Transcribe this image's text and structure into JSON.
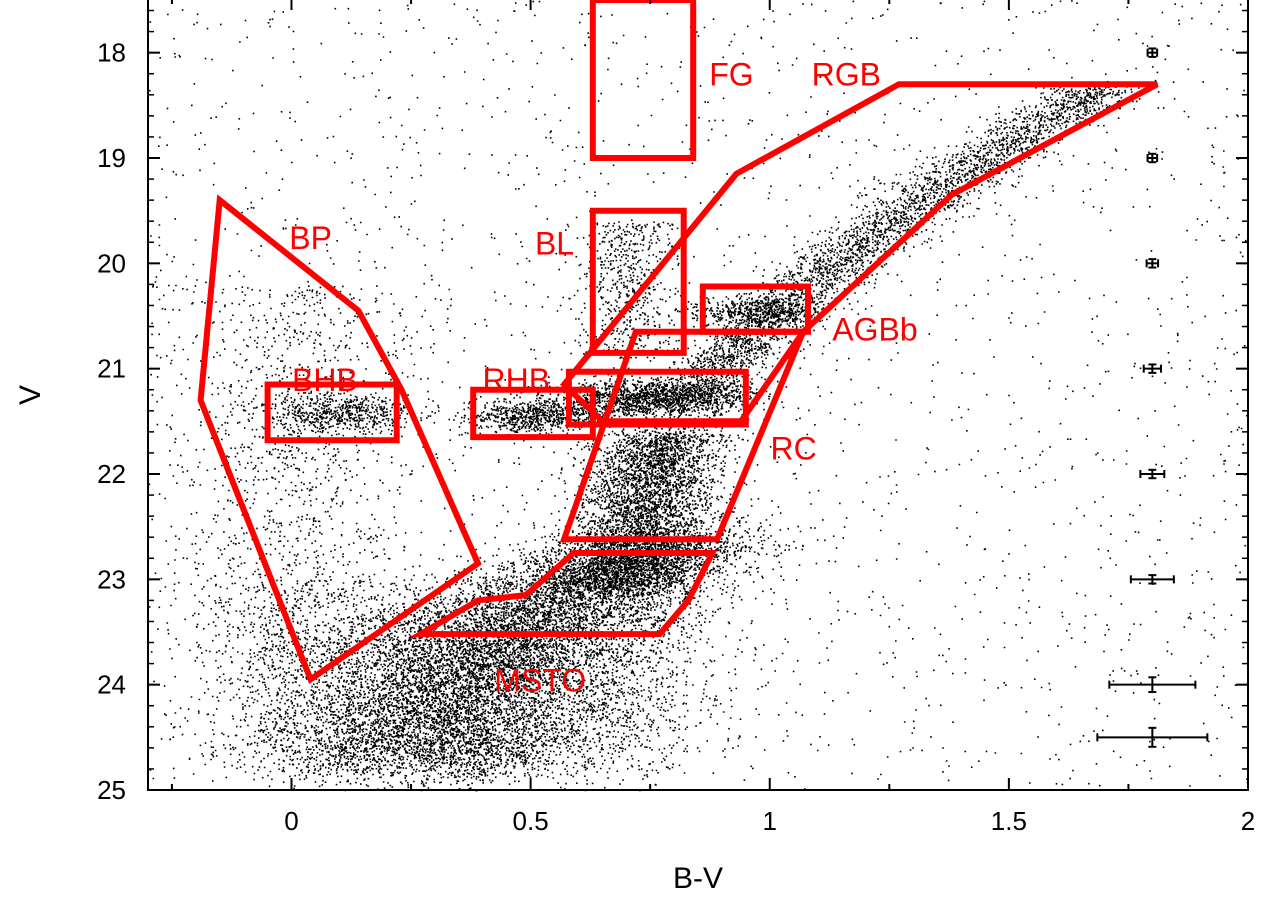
{
  "chart_data": {
    "type": "scatter",
    "title": "",
    "xlabel": "B-V",
    "ylabel": "V",
    "xlim": [
      -0.3,
      2.0
    ],
    "ylim": [
      25,
      17.5
    ],
    "y_inverted": true,
    "grid": false,
    "x_ticks": [
      "0",
      "0.5",
      "1",
      "1.5",
      "2"
    ],
    "x_tick_values": [
      0,
      0.5,
      1,
      1.5,
      2
    ],
    "y_ticks": [
      "18",
      "19",
      "20",
      "21",
      "22",
      "23",
      "24",
      "25"
    ],
    "y_tick_values": [
      18,
      19,
      20,
      21,
      22,
      23,
      24,
      25
    ],
    "colors": {
      "points": "#000000",
      "regions": "#ff0000",
      "errorbars": "#000000"
    },
    "point_density": [
      {
        "component": "main-sequence",
        "description_color": "#000000",
        "density": "very-high"
      },
      {
        "component": "red-giant-branch",
        "description_color": "#000000",
        "density": "high"
      },
      {
        "component": "horizontal-branch",
        "description_color": "#000000",
        "density": "high"
      },
      {
        "component": "field",
        "description_color": "#000000",
        "density": "low"
      }
    ],
    "regions": [
      {
        "name": "FG",
        "polygon": [
          [
            0.63,
            17.5
          ],
          [
            0.84,
            17.5
          ],
          [
            0.84,
            19.0
          ],
          [
            0.63,
            19.0
          ]
        ]
      },
      {
        "name": "RGB",
        "polygon": [
          [
            0.57,
            21.15
          ],
          [
            0.93,
            19.15
          ],
          [
            1.27,
            18.3
          ],
          [
            1.81,
            18.3
          ],
          [
            1.38,
            19.35
          ],
          [
            1.07,
            20.65
          ],
          [
            0.94,
            21.5
          ],
          [
            0.65,
            21.5
          ]
        ]
      },
      {
        "name": "BL",
        "polygon": [
          [
            0.63,
            19.5
          ],
          [
            0.82,
            19.5
          ],
          [
            0.82,
            20.85
          ],
          [
            0.63,
            20.85
          ]
        ]
      },
      {
        "name": "BP",
        "polygon": [
          [
            -0.15,
            19.4
          ],
          [
            0.14,
            20.45
          ],
          [
            0.23,
            21.2
          ],
          [
            0.39,
            22.85
          ],
          [
            0.04,
            23.95
          ],
          [
            -0.19,
            21.3
          ]
        ]
      },
      {
        "name": "AGBb",
        "polygon": [
          [
            0.86,
            20.22
          ],
          [
            1.08,
            20.22
          ],
          [
            1.08,
            20.65
          ],
          [
            0.86,
            20.65
          ]
        ]
      },
      {
        "name": "BHB",
        "polygon": [
          [
            -0.05,
            21.15
          ],
          [
            0.22,
            21.15
          ],
          [
            0.22,
            21.68
          ],
          [
            -0.05,
            21.68
          ]
        ]
      },
      {
        "name": "RHB",
        "polygon": [
          [
            0.38,
            21.2
          ],
          [
            0.63,
            21.2
          ],
          [
            0.63,
            21.65
          ],
          [
            0.38,
            21.65
          ]
        ]
      },
      {
        "name": "RC",
        "polygon": [
          [
            0.58,
            21.03
          ],
          [
            0.95,
            21.03
          ],
          [
            0.95,
            21.53
          ],
          [
            0.58,
            21.53
          ]
        ]
      },
      {
        "name": "RC-lower",
        "polygon": [
          [
            0.57,
            22.62
          ],
          [
            0.89,
            22.62
          ],
          [
            1.07,
            20.65
          ],
          [
            0.72,
            20.65
          ]
        ]
      },
      {
        "name": "MSTO",
        "polygon": [
          [
            0.27,
            23.52
          ],
          [
            0.39,
            23.2
          ],
          [
            0.49,
            23.15
          ],
          [
            0.59,
            22.75
          ],
          [
            0.88,
            22.75
          ],
          [
            0.83,
            23.2
          ],
          [
            0.77,
            23.52
          ]
        ]
      }
    ],
    "region_labels": [
      {
        "text": "FG",
        "x": 0.92,
        "y": 18.2
      },
      {
        "text": "RGB",
        "x": 1.16,
        "y": 18.2
      },
      {
        "text": "BP",
        "x": 0.04,
        "y": 19.75
      },
      {
        "text": "BL",
        "x": 0.55,
        "y": 19.8
      },
      {
        "text": "AGBb",
        "x": 1.22,
        "y": 20.62
      },
      {
        "text": "BHB",
        "x": 0.07,
        "y": 21.1
      },
      {
        "text": "RHB",
        "x": 0.47,
        "y": 21.1
      },
      {
        "text": "RC",
        "x": 1.05,
        "y": 21.75
      },
      {
        "text": "MSTO",
        "x": 0.52,
        "y": 23.95
      }
    ],
    "error_bars": [
      {
        "x": 1.8,
        "y": 18.0,
        "xerr": 0.01,
        "yerr": 0.04
      },
      {
        "x": 1.8,
        "y": 19.0,
        "xerr": 0.01,
        "yerr": 0.04
      },
      {
        "x": 1.8,
        "y": 20.0,
        "xerr": 0.012,
        "yerr": 0.04
      },
      {
        "x": 1.8,
        "y": 21.0,
        "xerr": 0.018,
        "yerr": 0.04
      },
      {
        "x": 1.8,
        "y": 22.0,
        "xerr": 0.025,
        "yerr": 0.04
      },
      {
        "x": 1.8,
        "y": 23.0,
        "xerr": 0.045,
        "yerr": 0.04
      },
      {
        "x": 1.8,
        "y": 24.0,
        "xerr": 0.09,
        "yerr": 0.07
      },
      {
        "x": 1.8,
        "y": 24.5,
        "xerr": 0.115,
        "yerr": 0.09
      }
    ]
  }
}
